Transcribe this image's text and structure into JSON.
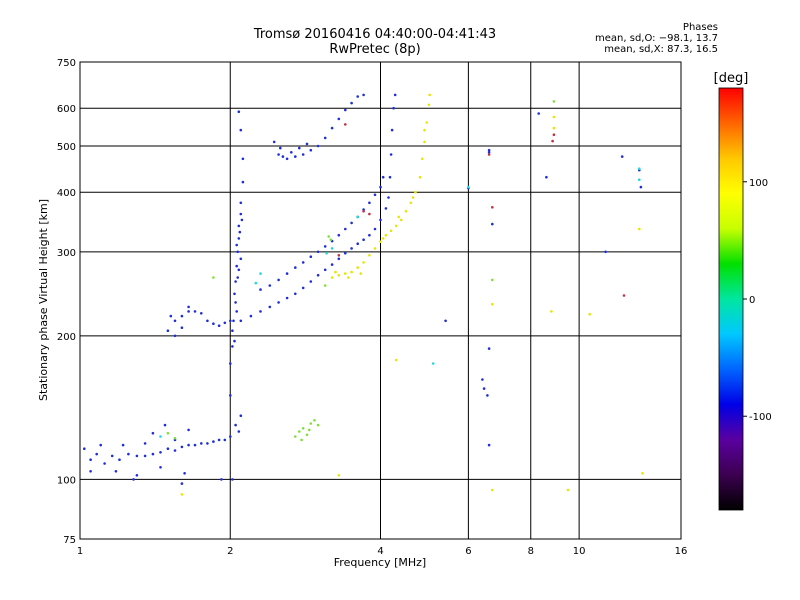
{
  "header": {
    "title_line1": "Tromsø 20160416 04:40:00-04:41:43",
    "title_line2": "RwPretec (8p)",
    "phase_title": "Phases",
    "phase_o": "mean, sd,O: −98.1, 13.7",
    "phase_x": "mean, sd,X: 87.3, 16.5"
  },
  "chart_data": {
    "type": "scatter",
    "xlabel": "Frequency [MHz]",
    "ylabel": "Stationary phase Virtual Height [km]",
    "x_scale": "log",
    "y_scale": "log",
    "xlim": [
      1,
      16
    ],
    "ylim": [
      75,
      750
    ],
    "x_ticks": [
      1,
      2,
      4,
      6,
      8,
      10,
      16
    ],
    "x_tick_labels": [
      "1",
      "2",
      "4",
      "6",
      "8",
      "10",
      "16"
    ],
    "x_gridlines": [
      2,
      4,
      6,
      8,
      10
    ],
    "y_ticks": [
      75,
      100,
      200,
      300,
      400,
      500,
      600,
      750
    ],
    "y_tick_labels": [
      "75",
      "100",
      "200",
      "300",
      "400",
      "500",
      "600",
      "750"
    ],
    "y_gridlines": [
      100,
      200,
      300,
      400,
      500,
      600
    ],
    "grid": true,
    "colorbar": {
      "label": "[deg]",
      "range": [
        -180,
        180
      ],
      "ticks": [
        100,
        0,
        -100
      ],
      "tick_labels": [
        "100",
        "0",
        "-100"
      ],
      "colors": [
        "#000000",
        "#3c0050",
        "#5a00a0",
        "#0000e6",
        "#0064ff",
        "#00c8ff",
        "#00e6a0",
        "#00e000",
        "#c8ff00",
        "#ffff00",
        "#ffc800",
        "#ff6400",
        "#ff0000"
      ]
    },
    "series": [
      {
        "color": "#1e2ed8",
        "points": [
          [
            1.02,
            116
          ],
          [
            1.05,
            110
          ],
          [
            1.08,
            113
          ],
          [
            1.12,
            108
          ],
          [
            1.16,
            112
          ],
          [
            1.2,
            110
          ],
          [
            1.25,
            113
          ],
          [
            1.3,
            112
          ],
          [
            1.35,
            112
          ],
          [
            1.4,
            113
          ],
          [
            1.45,
            114
          ],
          [
            1.5,
            116
          ],
          [
            1.55,
            115
          ],
          [
            1.6,
            117
          ],
          [
            1.65,
            118
          ],
          [
            1.7,
            118
          ],
          [
            1.75,
            119
          ],
          [
            1.8,
            119
          ],
          [
            1.85,
            120
          ],
          [
            1.9,
            121
          ],
          [
            1.95,
            121
          ],
          [
            2.0,
            123
          ],
          [
            1.1,
            118
          ],
          [
            1.18,
            104
          ],
          [
            1.22,
            118
          ],
          [
            1.3,
            102
          ],
          [
            1.4,
            125
          ],
          [
            1.48,
            130
          ],
          [
            1.55,
            121
          ],
          [
            1.6,
            98
          ],
          [
            1.65,
            127
          ],
          [
            1.05,
            104
          ],
          [
            1.28,
            100
          ],
          [
            1.35,
            119
          ],
          [
            1.45,
            106
          ],
          [
            1.62,
            103
          ],
          [
            2.02,
            100
          ],
          [
            2.0,
            150
          ],
          [
            2.0,
            175
          ],
          [
            2.02,
            190
          ],
          [
            2.02,
            205
          ],
          [
            2.03,
            215
          ],
          [
            2.05,
            235
          ],
          [
            2.05,
            260
          ],
          [
            2.06,
            280
          ],
          [
            2.07,
            300
          ],
          [
            2.08,
            320
          ],
          [
            2.08,
            340
          ],
          [
            2.1,
            360
          ],
          [
            2.1,
            380
          ],
          [
            2.12,
            420
          ],
          [
            2.12,
            470
          ],
          [
            2.1,
            540
          ],
          [
            2.08,
            590
          ],
          [
            2.05,
            130
          ],
          [
            2.08,
            126
          ],
          [
            2.1,
            136
          ],
          [
            1.92,
            100
          ],
          [
            2.04,
            245
          ],
          [
            2.07,
            265
          ],
          [
            2.08,
            275
          ],
          [
            2.1,
            290
          ],
          [
            2.06,
            310
          ],
          [
            2.09,
            330
          ],
          [
            2.11,
            350
          ],
          [
            2.06,
            225
          ],
          [
            2.04,
            195
          ],
          [
            1.52,
            220
          ],
          [
            1.55,
            215
          ],
          [
            1.6,
            220
          ],
          [
            1.65,
            225
          ],
          [
            1.7,
            225
          ],
          [
            1.75,
            223
          ],
          [
            1.8,
            215
          ],
          [
            1.5,
            205
          ],
          [
            1.55,
            200
          ],
          [
            1.6,
            208
          ],
          [
            1.65,
            230
          ],
          [
            1.85,
            212
          ],
          [
            1.9,
            210
          ],
          [
            1.95,
            213
          ],
          [
            2.0,
            215
          ],
          [
            2.1,
            215
          ],
          [
            2.2,
            220
          ],
          [
            2.3,
            225
          ],
          [
            2.4,
            230
          ],
          [
            2.5,
            235
          ],
          [
            2.6,
            240
          ],
          [
            2.7,
            245
          ],
          [
            2.8,
            252
          ],
          [
            2.9,
            260
          ],
          [
            3.0,
            268
          ],
          [
            3.1,
            275
          ],
          [
            3.2,
            282
          ],
          [
            3.3,
            290
          ],
          [
            3.4,
            298
          ],
          [
            3.5,
            305
          ],
          [
            3.6,
            312
          ],
          [
            3.7,
            318
          ],
          [
            3.8,
            325
          ],
          [
            3.9,
            335
          ],
          [
            4.0,
            350
          ],
          [
            4.1,
            370
          ],
          [
            4.15,
            390
          ],
          [
            4.18,
            430
          ],
          [
            4.2,
            480
          ],
          [
            4.22,
            540
          ],
          [
            4.25,
            600
          ],
          [
            4.28,
            640
          ],
          [
            2.3,
            250
          ],
          [
            2.4,
            255
          ],
          [
            2.5,
            262
          ],
          [
            2.6,
            270
          ],
          [
            2.7,
            278
          ],
          [
            2.8,
            285
          ],
          [
            2.9,
            293
          ],
          [
            3.0,
            300
          ],
          [
            3.1,
            308
          ],
          [
            3.2,
            316
          ],
          [
            3.3,
            325
          ],
          [
            3.4,
            335
          ],
          [
            3.5,
            345
          ],
          [
            3.6,
            355
          ],
          [
            3.7,
            368
          ],
          [
            3.8,
            380
          ],
          [
            3.9,
            395
          ],
          [
            4.0,
            410
          ],
          [
            4.05,
            430
          ],
          [
            2.5,
            480
          ],
          [
            2.55,
            475
          ],
          [
            2.6,
            470
          ],
          [
            2.7,
            475
          ],
          [
            2.8,
            480
          ],
          [
            2.9,
            490
          ],
          [
            3.0,
            500
          ],
          [
            3.1,
            520
          ],
          [
            3.2,
            545
          ],
          [
            3.3,
            570
          ],
          [
            3.4,
            595
          ],
          [
            3.5,
            615
          ],
          [
            3.6,
            635
          ],
          [
            3.7,
            640
          ],
          [
            2.45,
            510
          ],
          [
            2.52,
            495
          ],
          [
            2.65,
            485
          ],
          [
            2.75,
            495
          ],
          [
            2.85,
            505
          ],
          [
            6.6,
            490
          ],
          [
            6.6,
            485
          ],
          [
            6.6,
            188
          ],
          [
            6.55,
            150
          ],
          [
            6.6,
            118
          ],
          [
            6.4,
            162
          ],
          [
            6.45,
            155
          ],
          [
            5.4,
            215
          ],
          [
            8.3,
            585
          ],
          [
            8.6,
            430
          ],
          [
            12.2,
            475
          ],
          [
            13.2,
            445
          ],
          [
            13.3,
            410
          ],
          [
            11.3,
            300
          ],
          [
            6.0,
            408
          ],
          [
            6.7,
            343
          ]
        ]
      },
      {
        "color": "#e8e600",
        "points": [
          [
            3.2,
            265
          ],
          [
            3.3,
            268
          ],
          [
            3.4,
            270
          ],
          [
            3.5,
            272
          ],
          [
            3.6,
            278
          ],
          [
            3.7,
            285
          ],
          [
            3.8,
            295
          ],
          [
            3.9,
            305
          ],
          [
            4.0,
            315
          ],
          [
            4.1,
            325
          ],
          [
            4.2,
            332
          ],
          [
            4.3,
            340
          ],
          [
            4.4,
            350
          ],
          [
            4.5,
            365
          ],
          [
            4.6,
            380
          ],
          [
            4.7,
            400
          ],
          [
            4.8,
            430
          ],
          [
            4.85,
            470
          ],
          [
            4.9,
            510
          ],
          [
            4.95,
            560
          ],
          [
            5.0,
            610
          ],
          [
            5.02,
            640
          ],
          [
            3.25,
            272
          ],
          [
            3.45,
            265
          ],
          [
            3.65,
            270
          ],
          [
            4.05,
            320
          ],
          [
            4.35,
            355
          ],
          [
            4.65,
            390
          ],
          [
            4.9,
            540
          ],
          [
            8.9,
            575
          ],
          [
            8.9,
            545
          ],
          [
            8.8,
            225
          ],
          [
            6.7,
            233
          ],
          [
            6.7,
            95
          ],
          [
            4.3,
            178
          ],
          [
            3.3,
            102
          ],
          [
            10.5,
            222
          ],
          [
            13.2,
            335
          ],
          [
            13.4,
            103
          ],
          [
            9.5,
            95
          ],
          [
            1.6,
            93
          ]
        ]
      },
      {
        "color": "#7fe03a",
        "points": [
          [
            2.7,
            123
          ],
          [
            2.75,
            126
          ],
          [
            2.8,
            128
          ],
          [
            2.85,
            124
          ],
          [
            2.9,
            131
          ],
          [
            2.95,
            133
          ],
          [
            3.0,
            130
          ],
          [
            2.78,
            121
          ],
          [
            2.88,
            127
          ],
          [
            3.1,
            255
          ],
          [
            3.15,
            323
          ],
          [
            3.18,
            318
          ],
          [
            1.85,
            265
          ],
          [
            6.7,
            262
          ],
          [
            8.9,
            620
          ],
          [
            1.5,
            125
          ],
          [
            1.55,
            122
          ]
        ]
      },
      {
        "color": "#22d8d8",
        "points": [
          [
            3.12,
            298
          ],
          [
            3.2,
            305
          ],
          [
            5.1,
            175
          ],
          [
            6.0,
            410
          ],
          [
            13.2,
            448
          ],
          [
            13.2,
            425
          ],
          [
            3.6,
            355
          ],
          [
            1.45,
            123
          ],
          [
            2.3,
            270
          ],
          [
            2.25,
            258
          ]
        ]
      },
      {
        "color": "#c03040",
        "points": [
          [
            6.7,
            372
          ],
          [
            6.6,
            480
          ],
          [
            12.3,
            243
          ],
          [
            3.7,
            365
          ],
          [
            3.8,
            360
          ],
          [
            3.3,
            295
          ],
          [
            3.4,
            555
          ],
          [
            8.85,
            512
          ],
          [
            8.9,
            528
          ]
        ]
      }
    ]
  }
}
